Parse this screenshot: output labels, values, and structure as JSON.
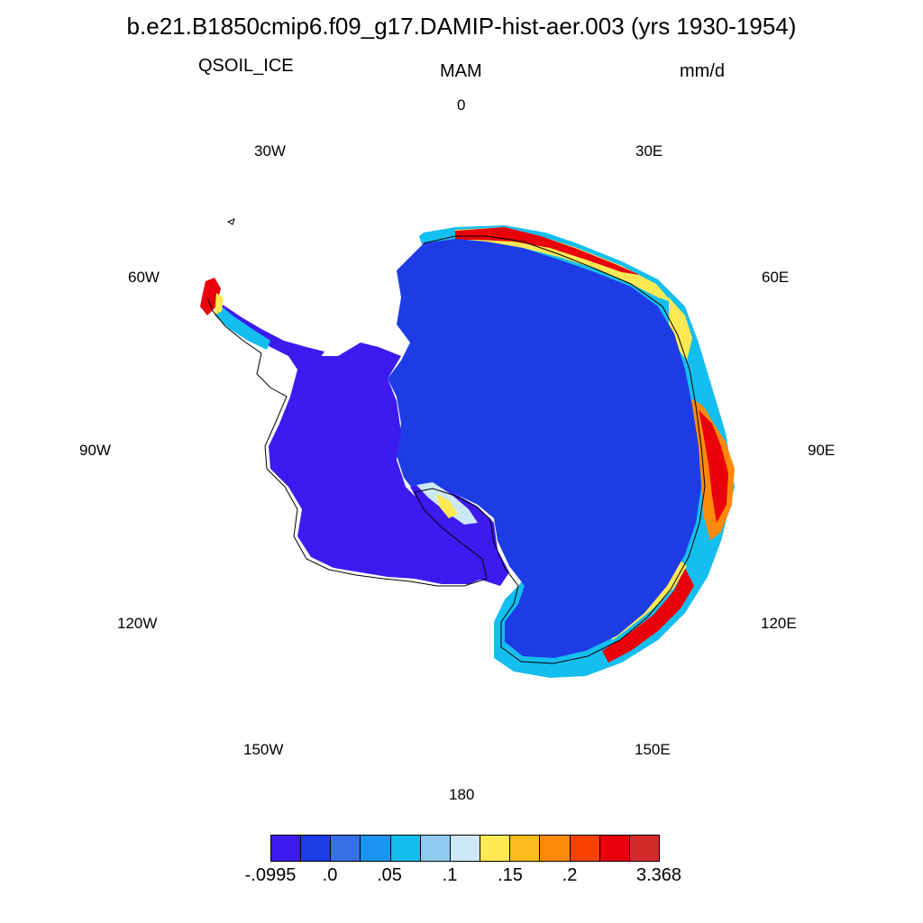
{
  "header": {
    "title": "b.e21.B1850cmip6.f09_g17.DAMIP-hist-aer.003 (yrs 1930-1954)",
    "variable": "QSOIL_ICE",
    "season": "MAM",
    "units": "mm/d"
  },
  "longitude_labels": [
    "0",
    "30E",
    "60E",
    "90E",
    "120E",
    "150E",
    "180",
    "150W",
    "120W",
    "90W",
    "60W",
    "30W"
  ],
  "colorbar": {
    "colors": [
      "#3d1af0",
      "#1e3ce6",
      "#3470e6",
      "#1a96f2",
      "#14beef",
      "#8ecbef",
      "#cce8f7",
      "#fee955",
      "#fdbc1d",
      "#fd8a0a",
      "#f94104",
      "#e9000a",
      "#d52a2c"
    ],
    "labels": [
      "-.0995",
      ".0",
      ".05",
      ".1",
      ".15",
      ".2",
      "3.368"
    ]
  },
  "map": {
    "projection": "south-polar-stereographic",
    "land_color": "#1e3ce6",
    "west_interior_color": "#3d1af0",
    "coast_high_color": "#e9000a"
  }
}
